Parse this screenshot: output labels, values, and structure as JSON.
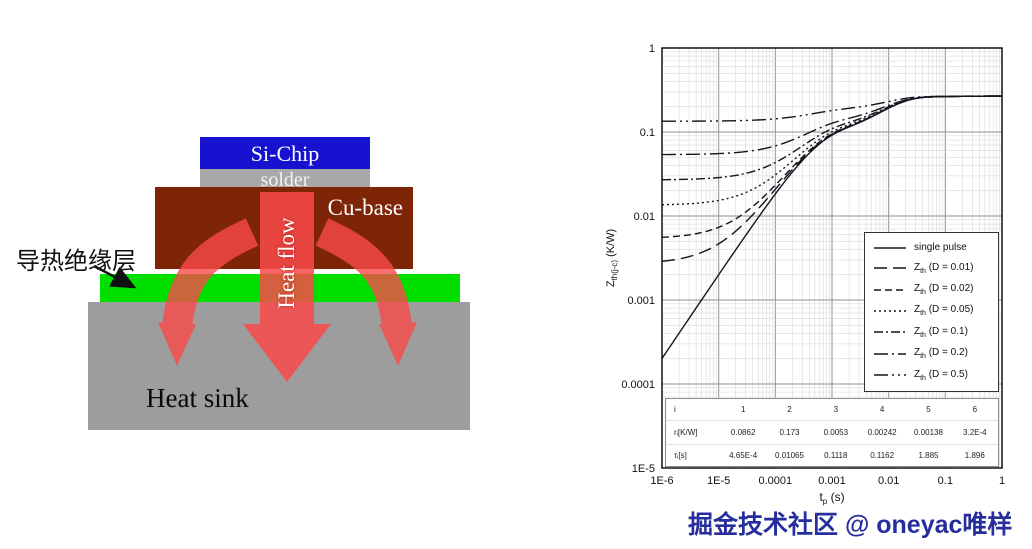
{
  "diagram": {
    "insulation_label": "导热绝缘层",
    "heat_flow_label": "Heat flow",
    "layers": {
      "si_chip": "Si-Chip",
      "solder": "solder",
      "cu_base": "Cu-base",
      "heat_sink": "Heat sink"
    },
    "colors": {
      "si_chip": "#1612cf",
      "solder": "#a8a8a8",
      "cu_base": "#7e2508",
      "insulation": "#00e000",
      "heat_sink": "#9d9d9d",
      "heat_flow_arrow": "#fb4a4a"
    }
  },
  "chart_data": {
    "type": "line",
    "x_scale": "log",
    "y_scale": "log",
    "grid": "major+minor log grid on",
    "legend_position": "right-center inside plot",
    "xlim": [
      1e-06,
      1
    ],
    "ylim": [
      1e-05,
      1
    ],
    "xticks": [
      "1E-6",
      "1E-5",
      "0.0001",
      "0.001",
      "0.01",
      "0.1",
      "1"
    ],
    "yticks": [
      "1",
      "0.1",
      "0.01",
      "0.001",
      "0.0001",
      "1E-5"
    ],
    "xlabel": {
      "main": "t",
      "sub": "p",
      "rest": " (s)"
    },
    "ylabel": {
      "main": "Z",
      "sub": "th(j-c)",
      "rest": " (K/W)"
    },
    "line_color": "#15151f",
    "foster_model": {
      "i": [
        1,
        2,
        3,
        4,
        5,
        6
      ],
      "r_KW": [
        0.0862,
        0.173,
        0.0053,
        0.00242,
        0.00138,
        0.00032
      ],
      "tau_s": [
        0.000465,
        0.01065,
        0.1118,
        0.1162,
        1.885,
        1.896
      ]
    },
    "series": [
      {
        "label_main": "single pulse",
        "label_sub": "",
        "label_rest": "",
        "duty": 0,
        "dash": ""
      },
      {
        "label_main": "Z",
        "label_sub": "th",
        "label_rest": " (D = 0.01)",
        "duty": 0.01,
        "dash": "13 6"
      },
      {
        "label_main": "Z",
        "label_sub": "th",
        "label_rest": " (D = 0.02)",
        "duty": 0.02,
        "dash": "7 4"
      },
      {
        "label_main": "Z",
        "label_sub": "th",
        "label_rest": " (D = 0.05)",
        "duty": 0.05,
        "dash": "2 3"
      },
      {
        "label_main": "Z",
        "label_sub": "th",
        "label_rest": " (D = 0.1)",
        "duty": 0.1,
        "dash": "9 3 2 3"
      },
      {
        "label_main": "Z",
        "label_sub": "th",
        "label_rest": " (D = 0.2)",
        "duty": 0.2,
        "dash": "14 4 2 4"
      },
      {
        "label_main": "Z",
        "label_sub": "th",
        "label_rest": " (D = 0.5)",
        "duty": 0.5,
        "dash": "14 4 2 4 2 4"
      }
    ],
    "table": {
      "rows": [
        [
          "i",
          "1",
          "2",
          "3",
          "4",
          "5",
          "6"
        ],
        [
          "rᵢ[K/W]",
          "0.0862",
          "0.173",
          "0.0053",
          "0.00242",
          "0.00138",
          "3.2E-4"
        ],
        [
          "τᵢ[s]",
          "4.65E-4",
          "0.01065",
          "0.1118",
          "0.1162",
          "1.885",
          "1.896"
        ]
      ]
    }
  },
  "watermark": {
    "text": "掘金技术社区 @ oneyac唯样",
    "color": "#262e9c"
  }
}
